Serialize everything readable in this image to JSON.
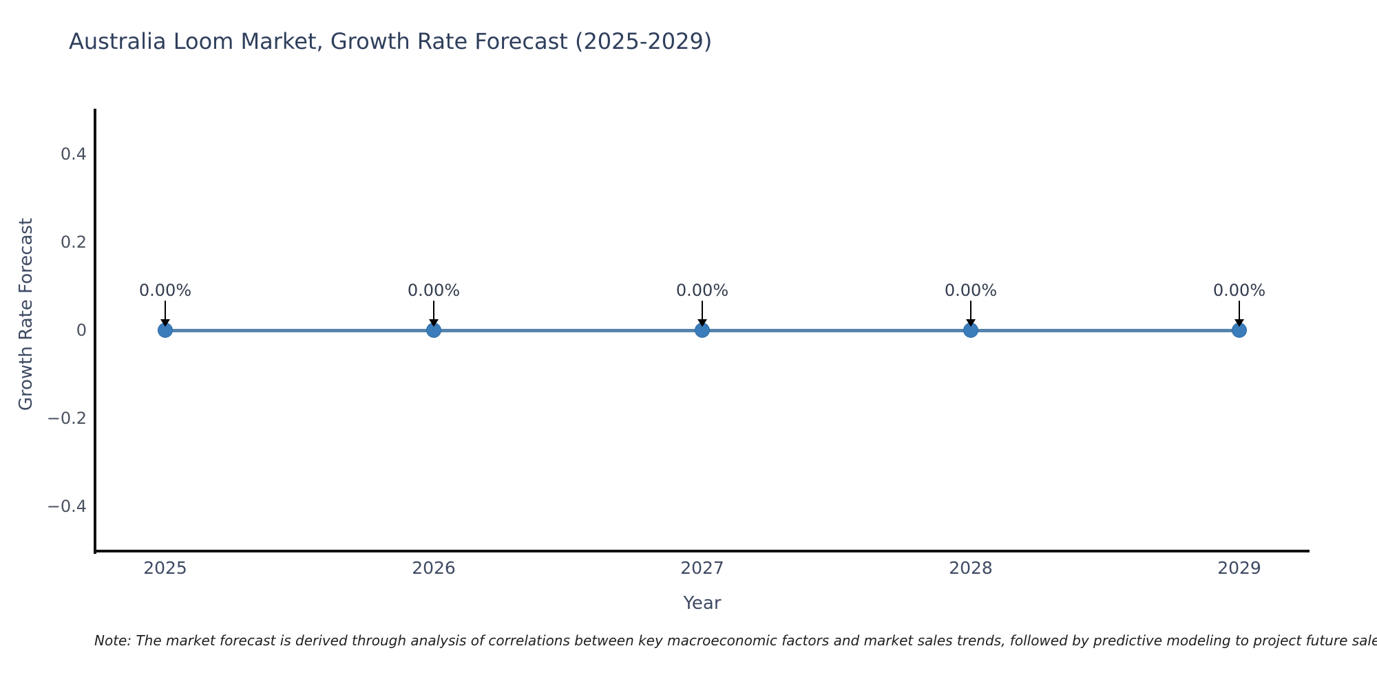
{
  "chart_data": {
    "type": "line",
    "title": "Australia Loom Market, Growth Rate Forecast (2025-2029)",
    "xlabel": "Year",
    "ylabel": "Growth Rate Forecast",
    "x": [
      2025,
      2026,
      2027,
      2028,
      2029
    ],
    "series": [
      {
        "name": "Growth Rate Forecast",
        "values": [
          0,
          0,
          0,
          0,
          0
        ]
      }
    ],
    "point_labels": [
      "0.00%",
      "0.00%",
      "0.00%",
      "0.00%",
      "0.00%"
    ],
    "annotation_arrows": "down-to-point",
    "xlim": [
      2024.74,
      2029.26
    ],
    "ylim": [
      -0.5,
      0.5
    ],
    "yticks": {
      "values": [
        0.4,
        0.2,
        0,
        -0.2,
        -0.4
      ],
      "labels": [
        "0.4",
        "0.2",
        "0",
        "−0.2",
        "−0.4"
      ]
    },
    "xticks": {
      "values": [
        2025,
        2026,
        2027,
        2028,
        2029
      ],
      "labels": [
        "2025",
        "2026",
        "2027",
        "2028",
        "2029"
      ]
    },
    "grid": false,
    "legend_position": "none",
    "colors": {
      "line": "#5584ad",
      "marker": "#3b7cba",
      "marker_edge": "#2e6ca5",
      "axis": "#111111",
      "title_text": "#2f3f5c",
      "axis_title_text": "#3e4a63",
      "tick_text": "#4a5260",
      "annotation_text": "#333c4e",
      "arrow": "#000000",
      "background": "#ffffff"
    }
  },
  "note": {
    "text": "Note: The market forecast is derived through analysis of correlations between key macroeconomic factors and market sales trends, followed by predictive modeling to project future sales."
  }
}
